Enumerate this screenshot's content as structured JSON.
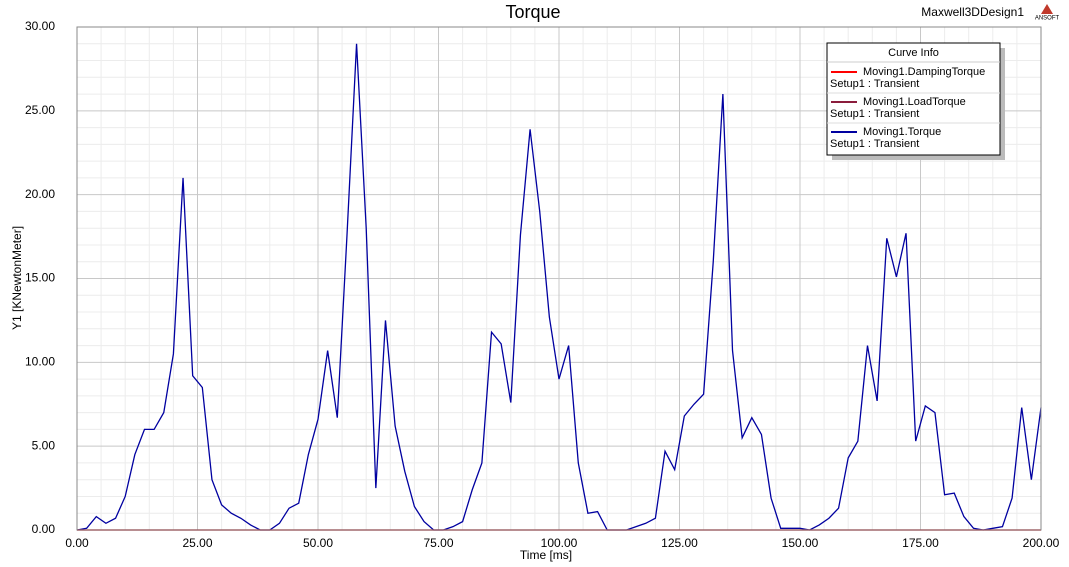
{
  "chart_data": {
    "type": "line",
    "title": "Torque",
    "design_name": "Maxwell3DDesign1",
    "logo_text": "ANSOFT",
    "x_label": "Time [ms]",
    "y_label": "Y1 [KNewtonMeter]",
    "legend_title": "Curve Info",
    "legend_position": "top-right",
    "grid": true,
    "xlim": [
      0,
      200
    ],
    "ylim": [
      0,
      30
    ],
    "xticks": [
      {
        "value": 0,
        "label": "0.00"
      },
      {
        "value": 25,
        "label": "25.00"
      },
      {
        "value": 50,
        "label": "50.00"
      },
      {
        "value": 75,
        "label": "75.00"
      },
      {
        "value": 100,
        "label": "100.00"
      },
      {
        "value": 125,
        "label": "125.00"
      },
      {
        "value": 150,
        "label": "150.00"
      },
      {
        "value": 175,
        "label": "175.00"
      },
      {
        "value": 200,
        "label": "200.00"
      }
    ],
    "yticks": [
      {
        "value": 0,
        "label": "0.00"
      },
      {
        "value": 5,
        "label": "5.00"
      },
      {
        "value": 10,
        "label": "10.00"
      },
      {
        "value": 15,
        "label": "15.00"
      },
      {
        "value": 20,
        "label": "20.00"
      },
      {
        "value": 25,
        "label": "25.00"
      },
      {
        "value": 30,
        "label": "30.00"
      }
    ],
    "x_minor_ticks": [
      5,
      10,
      15,
      20,
      30,
      35,
      40,
      45,
      55,
      60,
      65,
      70,
      80,
      85,
      90,
      95,
      105,
      110,
      115,
      120,
      130,
      135,
      140,
      145,
      155,
      160,
      165,
      170,
      180,
      185,
      190,
      195
    ],
    "y_minor_ticks": [
      1,
      2,
      3,
      4,
      6,
      7,
      8,
      9,
      11,
      12,
      13,
      14,
      16,
      17,
      18,
      19,
      21,
      22,
      23,
      24,
      26,
      27,
      28,
      29
    ],
    "series": [
      {
        "name": "Moving1.DampingTorque",
        "context": "Setup1 : Transient",
        "color": "#ff0000",
        "x": [
          0,
          200
        ],
        "values": [
          0,
          0
        ]
      },
      {
        "name": "Moving1.LoadTorque",
        "context": "Setup1 : Transient",
        "color": "#8b1c3c",
        "x": [
          0,
          200
        ],
        "values": [
          0,
          0
        ]
      },
      {
        "name": "Moving1.Torque",
        "context": "Setup1 : Transient",
        "color": "#0000a0",
        "x": [
          0,
          2,
          4,
          6,
          8,
          10,
          12,
          14,
          16,
          18,
          20,
          22,
          24,
          26,
          28,
          30,
          32,
          34,
          36,
          38,
          40,
          42,
          44,
          46,
          48,
          50,
          52,
          54,
          56,
          58,
          60,
          62,
          64,
          66,
          68,
          70,
          72,
          74,
          76,
          78,
          80,
          82,
          84,
          86,
          88,
          90,
          92,
          94,
          96,
          98,
          100,
          102,
          104,
          106,
          108,
          110,
          112,
          114,
          116,
          118,
          120,
          122,
          124,
          126,
          128,
          130,
          132,
          134,
          136,
          138,
          140,
          142,
          144,
          146,
          148,
          150,
          152,
          154,
          156,
          158,
          160,
          162,
          164,
          166,
          168,
          170,
          172,
          174,
          176,
          178,
          180,
          182,
          184,
          186,
          188,
          190,
          192,
          194,
          196,
          198,
          200
        ],
        "values": [
          0,
          0.1,
          0.8,
          0.4,
          0.7,
          2.0,
          4.5,
          6.0,
          6.0,
          7.0,
          10.5,
          21.0,
          9.2,
          8.5,
          3.0,
          1.5,
          1.0,
          0.7,
          0.3,
          0.0,
          0.0,
          0.4,
          1.3,
          1.6,
          4.5,
          6.6,
          10.7,
          6.7,
          17.5,
          29.0,
          18.0,
          2.5,
          12.5,
          6.2,
          3.5,
          1.4,
          0.5,
          0.0,
          0.0,
          0.2,
          0.5,
          2.4,
          4.0,
          11.8,
          11.1,
          7.6,
          17.6,
          23.9,
          19.0,
          12.7,
          9.0,
          11.0,
          4.0,
          1.0,
          1.1,
          0.0,
          0.0,
          0.0,
          0.2,
          0.4,
          0.7,
          4.7,
          3.6,
          6.8,
          7.5,
          8.1,
          16.0,
          26.0,
          10.7,
          5.5,
          6.7,
          5.7,
          1.9,
          0.1,
          0.1,
          0.1,
          0.0,
          0.3,
          0.7,
          1.3,
          4.3,
          5.3,
          11.0,
          7.7,
          17.4,
          15.1,
          17.7,
          5.3,
          7.4,
          7.0,
          2.1,
          2.2,
          0.8,
          0.1,
          0.0,
          0.1,
          0.2,
          1.9,
          7.3,
          3.0,
          7.3
        ]
      }
    ]
  }
}
